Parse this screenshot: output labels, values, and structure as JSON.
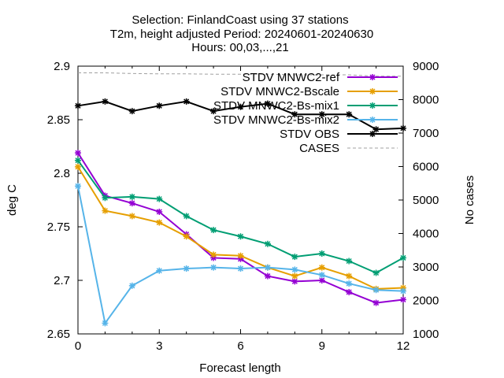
{
  "chart_data": {
    "type": "line",
    "title_lines": [
      "Selection: FinlandCoast using     37 stations",
      "T2m, height adjusted   Period: 20240601-20240630",
      "Hours: 00,03,...,21"
    ],
    "xlabel": "Forecast length",
    "ylabel": "deg C",
    "y2label": "No cases",
    "xlim": [
      0,
      12
    ],
    "ylim": [
      2.65,
      2.9
    ],
    "y2lim": [
      1000,
      9000
    ],
    "xticks": [
      "0",
      "3",
      "6",
      "9",
      "12"
    ],
    "xtick_values": [
      0,
      3,
      6,
      9,
      12
    ],
    "yticks": [
      "2.65",
      "2.7",
      "2.75",
      "2.8",
      "2.85",
      "2.9"
    ],
    "ytick_values": [
      2.65,
      2.7,
      2.75,
      2.8,
      2.85,
      2.9
    ],
    "y2ticks": [
      "1000",
      "2000",
      "3000",
      "4000",
      "5000",
      "6000",
      "7000",
      "8000",
      "9000"
    ],
    "y2tick_values": [
      1000,
      2000,
      3000,
      4000,
      5000,
      6000,
      7000,
      8000,
      9000
    ],
    "legend_position": "top-right",
    "grid": false,
    "x": [
      0,
      1,
      2,
      3,
      4,
      5,
      6,
      7,
      8,
      9,
      10,
      11,
      12
    ],
    "series": [
      {
        "name": "STDV MNWC2-ref",
        "color": "#9400d3",
        "axis": "y",
        "marker": "asterisk",
        "values": [
          2.819,
          2.779,
          2.772,
          2.764,
          2.743,
          2.721,
          2.72,
          2.704,
          2.699,
          2.7,
          2.689,
          2.679,
          2.682
        ]
      },
      {
        "name": "STDV MNWC2-Bscale",
        "color": "#e69f00",
        "axis": "y",
        "marker": "asterisk",
        "values": [
          2.806,
          2.765,
          2.76,
          2.754,
          2.741,
          2.724,
          2.723,
          2.712,
          2.704,
          2.712,
          2.704,
          2.692,
          2.693
        ]
      },
      {
        "name": "STDV MNWC2-Bs-mix1",
        "color": "#009e73",
        "axis": "y",
        "marker": "asterisk",
        "values": [
          2.812,
          2.777,
          2.778,
          2.776,
          2.76,
          2.747,
          2.741,
          2.734,
          2.722,
          2.725,
          2.718,
          2.707,
          2.721
        ]
      },
      {
        "name": "STDV MNWC2-Bs-mix2",
        "color": "#56b4e9",
        "axis": "y",
        "marker": "asterisk",
        "values": [
          2.788,
          2.66,
          2.695,
          2.709,
          2.711,
          2.712,
          2.711,
          2.712,
          2.71,
          2.705,
          2.697,
          2.691,
          2.69
        ]
      },
      {
        "name": "STDV OBS",
        "color": "#000000",
        "axis": "y",
        "marker": "asterisk",
        "values": [
          2.863,
          2.867,
          2.858,
          2.863,
          2.867,
          2.858,
          2.862,
          2.865,
          2.855,
          2.855,
          2.855,
          2.841,
          2.842
        ]
      },
      {
        "name": "CASES",
        "color": "#a0a0a0",
        "axis": "y2",
        "dash": true,
        "values": [
          8800,
          8800,
          8780,
          8770,
          8770,
          8760,
          8760,
          8760,
          8740,
          8740,
          8740,
          8700,
          8700
        ]
      }
    ]
  }
}
